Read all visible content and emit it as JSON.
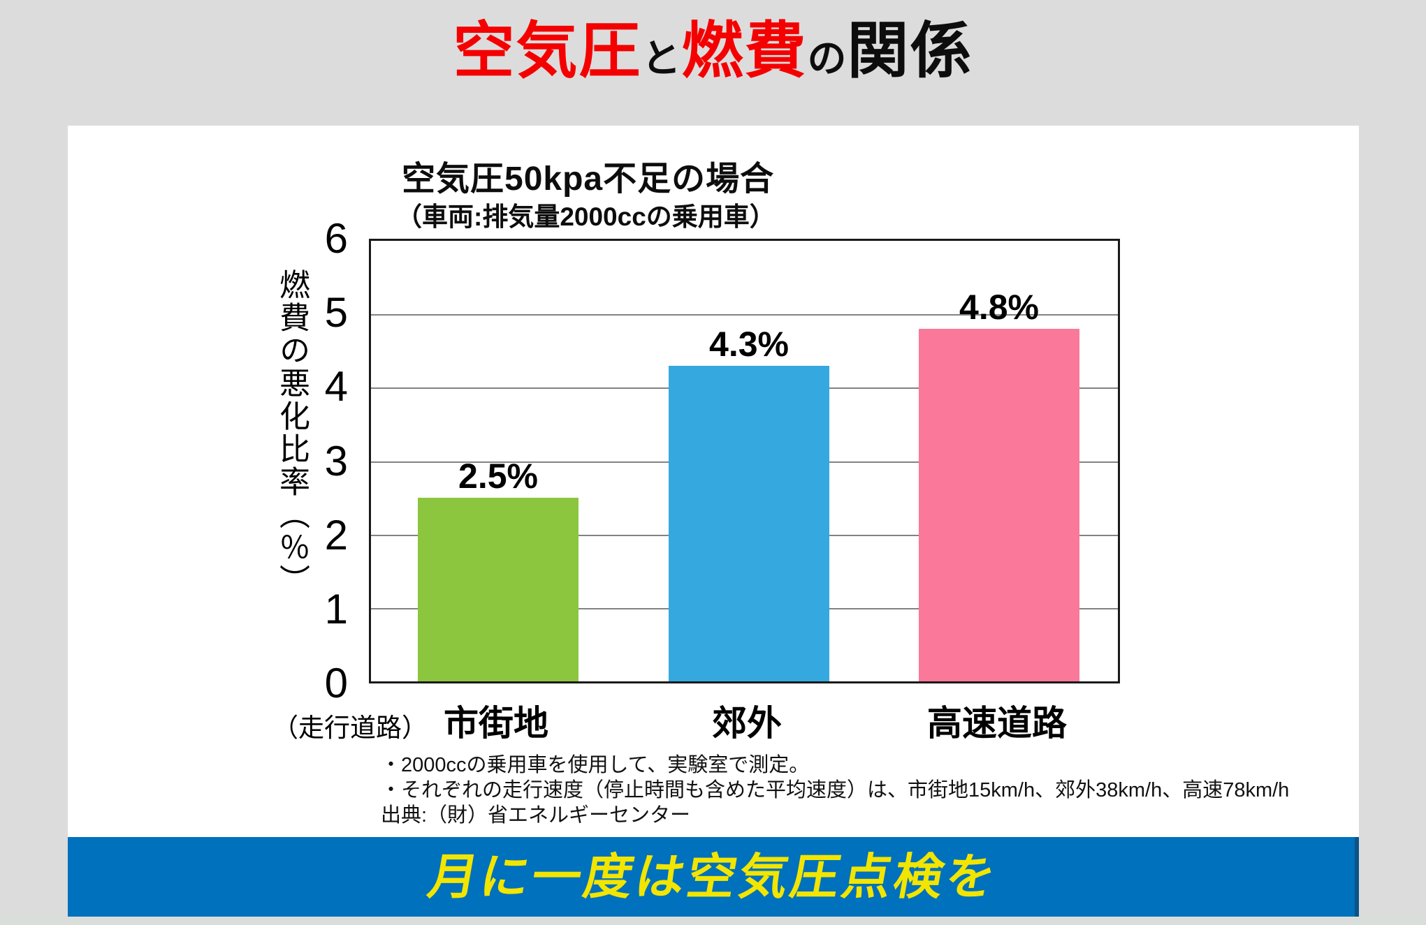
{
  "page": {
    "title": {
      "part1": "空気圧",
      "part2": "と",
      "part3": "燃費",
      "part4": "の",
      "part5": "関係",
      "red": "#F40000",
      "black": "#0d0d0d"
    },
    "banner": {
      "text": "月に一度は空気圧点検を",
      "bg": "#0071BC",
      "fg": "#F2E500"
    }
  },
  "chart_data": {
    "type": "bar",
    "title": "空気圧50kpa不足の場合",
    "subtitle": "（車両:排気量2000ccの乗用車）",
    "ylabel": "燃費の悪化比率（％）",
    "xlabel_prefix": "（走行道路）",
    "categories": [
      "市街地",
      "郊外",
      "高速道路"
    ],
    "values": [
      2.5,
      4.3,
      4.8
    ],
    "value_labels": [
      "2.5%",
      "4.3%",
      "4.8%"
    ],
    "bar_colors": [
      "#8CC63F",
      "#35A8E0",
      "#FA789A"
    ],
    "ylim": [
      0,
      6
    ],
    "yticks": [
      "6",
      "5",
      "4",
      "3",
      "2",
      "1",
      "0"
    ],
    "grid": true,
    "legend": null,
    "notes": [
      "・2000ccの乗用車を使用して、実験室で測定。",
      "・それぞれの走行速度（停止時間も含めた平均速度）は、市街地15km/h、郊外38km/h、高速78km/h",
      "出典:（財）省エネルギーセンター"
    ]
  }
}
